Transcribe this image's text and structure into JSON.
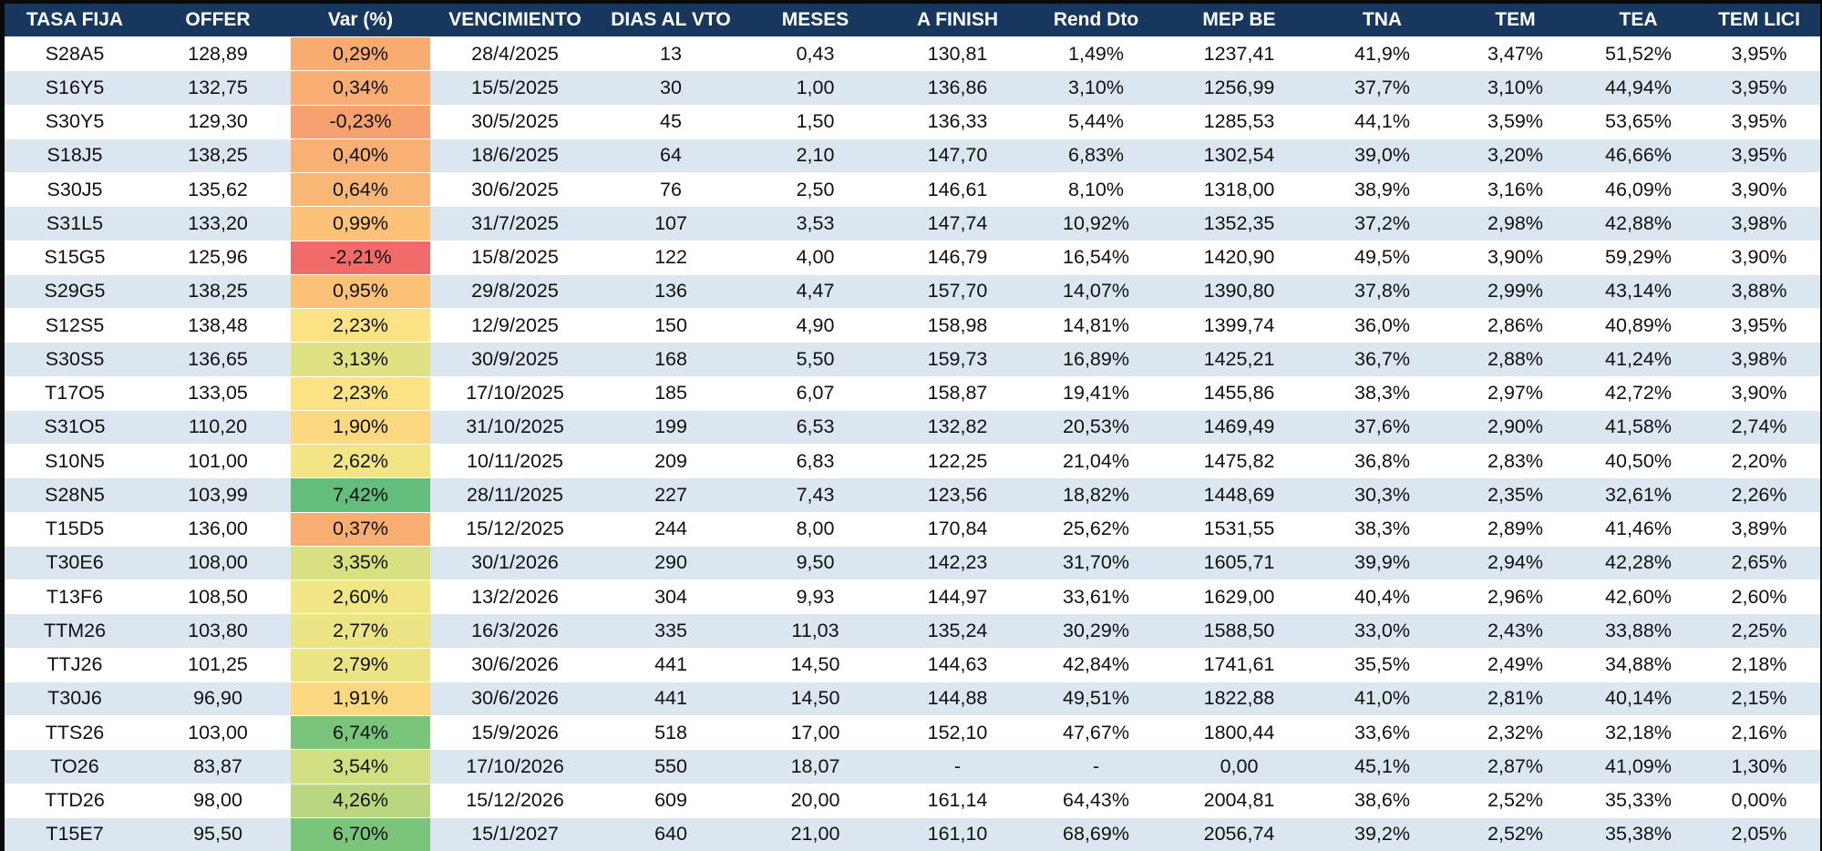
{
  "table": {
    "headers": [
      "TASA FIJA",
      "OFFER",
      "Var (%)",
      "VENCIMIENTO",
      "DIAS AL VTO",
      "MESES",
      "A FINISH",
      "Rend Dto",
      "MEP BE",
      "TNA",
      "TEM",
      "TEA",
      "TEM LICI"
    ],
    "rows": [
      {
        "ticker": "S28A5",
        "offer": "128,89",
        "var": "0,29%",
        "var_color": "#f8ac72",
        "vencimiento": "28/4/2025",
        "dias": "13",
        "meses": "0,43",
        "finish": "130,81",
        "rend": "1,49%",
        "mep": "1237,41",
        "tna": "41,9%",
        "tem": "3,47%",
        "tea": "51,52%",
        "tem_lici": "3,95%"
      },
      {
        "ticker": "S16Y5",
        "offer": "132,75",
        "var": "0,34%",
        "var_color": "#f8ad72",
        "vencimiento": "15/5/2025",
        "dias": "30",
        "meses": "1,00",
        "finish": "136,86",
        "rend": "3,10%",
        "mep": "1256,99",
        "tna": "37,7%",
        "tem": "3,10%",
        "tea": "44,94%",
        "tem_lici": "3,95%"
      },
      {
        "ticker": "S30Y5",
        "offer": "129,30",
        "var": "-0,23%",
        "var_color": "#f7a070",
        "vencimiento": "30/5/2025",
        "dias": "45",
        "meses": "1,50",
        "finish": "136,33",
        "rend": "5,44%",
        "mep": "1285,53",
        "tna": "44,1%",
        "tem": "3,59%",
        "tea": "53,65%",
        "tem_lici": "3,95%"
      },
      {
        "ticker": "S18J5",
        "offer": "138,25",
        "var": "0,40%",
        "var_color": "#f9b074",
        "vencimiento": "18/6/2025",
        "dias": "64",
        "meses": "2,10",
        "finish": "147,70",
        "rend": "6,83%",
        "mep": "1302,54",
        "tna": "39,0%",
        "tem": "3,20%",
        "tea": "46,66%",
        "tem_lici": "3,95%"
      },
      {
        "ticker": "S30J5",
        "offer": "135,62",
        "var": "0,64%",
        "var_color": "#f9b775",
        "vencimiento": "30/6/2025",
        "dias": "76",
        "meses": "2,50",
        "finish": "146,61",
        "rend": "8,10%",
        "mep": "1318,00",
        "tna": "38,9%",
        "tem": "3,16%",
        "tea": "46,09%",
        "tem_lici": "3,90%"
      },
      {
        "ticker": "S31L5",
        "offer": "133,20",
        "var": "0,99%",
        "var_color": "#fbc278",
        "vencimiento": "31/7/2025",
        "dias": "107",
        "meses": "3,53",
        "finish": "147,74",
        "rend": "10,92%",
        "mep": "1352,35",
        "tna": "37,2%",
        "tem": "2,98%",
        "tea": "42,88%",
        "tem_lici": "3,98%"
      },
      {
        "ticker": "S15G5",
        "offer": "125,96",
        "var": "-2,21%",
        "var_color": "#f26b6b",
        "vencimiento": "15/8/2025",
        "dias": "122",
        "meses": "4,00",
        "finish": "146,79",
        "rend": "16,54%",
        "mep": "1420,90",
        "tna": "49,5%",
        "tem": "3,90%",
        "tea": "59,29%",
        "tem_lici": "3,90%"
      },
      {
        "ticker": "S29G5",
        "offer": "138,25",
        "var": "0,95%",
        "var_color": "#fbc177",
        "vencimiento": "29/8/2025",
        "dias": "136",
        "meses": "4,47",
        "finish": "157,70",
        "rend": "14,07%",
        "mep": "1390,80",
        "tna": "37,8%",
        "tem": "2,99%",
        "tea": "43,14%",
        "tem_lici": "3,88%"
      },
      {
        "ticker": "S12S5",
        "offer": "138,48",
        "var": "2,23%",
        "var_color": "#fde385",
        "vencimiento": "12/9/2025",
        "dias": "150",
        "meses": "4,90",
        "finish": "158,98",
        "rend": "14,81%",
        "mep": "1399,74",
        "tna": "36,0%",
        "tem": "2,86%",
        "tea": "40,89%",
        "tem_lici": "3,95%"
      },
      {
        "ticker": "S30S5",
        "offer": "136,65",
        "var": "3,13%",
        "var_color": "#dfe283",
        "vencimiento": "30/9/2025",
        "dias": "168",
        "meses": "5,50",
        "finish": "159,73",
        "rend": "16,89%",
        "mep": "1425,21",
        "tna": "36,7%",
        "tem": "2,88%",
        "tea": "41,24%",
        "tem_lici": "3,98%"
      },
      {
        "ticker": "T17O5",
        "offer": "133,05",
        "var": "2,23%",
        "var_color": "#fde385",
        "vencimiento": "17/10/2025",
        "dias": "185",
        "meses": "6,07",
        "finish": "158,87",
        "rend": "19,41%",
        "mep": "1455,86",
        "tna": "38,3%",
        "tem": "2,97%",
        "tea": "42,72%",
        "tem_lici": "3,90%"
      },
      {
        "ticker": "S31O5",
        "offer": "110,20",
        "var": "1,90%",
        "var_color": "#fcd880",
        "vencimiento": "31/10/2025",
        "dias": "199",
        "meses": "6,53",
        "finish": "132,82",
        "rend": "20,53%",
        "mep": "1469,49",
        "tna": "37,6%",
        "tem": "2,90%",
        "tea": "41,58%",
        "tem_lici": "2,74%"
      },
      {
        "ticker": "S10N5",
        "offer": "101,00",
        "var": "2,62%",
        "var_color": "#f1e585",
        "vencimiento": "10/11/2025",
        "dias": "209",
        "meses": "6,83",
        "finish": "122,25",
        "rend": "21,04%",
        "mep": "1475,82",
        "tna": "36,8%",
        "tem": "2,83%",
        "tea": "40,50%",
        "tem_lici": "2,20%"
      },
      {
        "ticker": "S28N5",
        "offer": "103,99",
        "var": "7,42%",
        "var_color": "#63be7b",
        "vencimiento": "28/11/2025",
        "dias": "227",
        "meses": "7,43",
        "finish": "123,56",
        "rend": "18,82%",
        "mep": "1448,69",
        "tna": "30,3%",
        "tem": "2,35%",
        "tea": "32,61%",
        "tem_lici": "2,26%"
      },
      {
        "ticker": "T15D5",
        "offer": "136,00",
        "var": "0,37%",
        "var_color": "#f8ae73",
        "vencimiento": "15/12/2025",
        "dias": "244",
        "meses": "8,00",
        "finish": "170,84",
        "rend": "25,62%",
        "mep": "1531,55",
        "tna": "38,3%",
        "tem": "2,89%",
        "tea": "41,46%",
        "tem_lici": "3,89%"
      },
      {
        "ticker": "T30E6",
        "offer": "108,00",
        "var": "3,35%",
        "var_color": "#d8e082",
        "vencimiento": "30/1/2026",
        "dias": "290",
        "meses": "9,50",
        "finish": "142,23",
        "rend": "31,70%",
        "mep": "1605,71",
        "tna": "39,9%",
        "tem": "2,94%",
        "tea": "42,28%",
        "tem_lici": "2,65%"
      },
      {
        "ticker": "T13F6",
        "offer": "108,50",
        "var": "2,60%",
        "var_color": "#f2e585",
        "vencimiento": "13/2/2026",
        "dias": "304",
        "meses": "9,93",
        "finish": "144,97",
        "rend": "33,61%",
        "mep": "1629,00",
        "tna": "40,4%",
        "tem": "2,96%",
        "tea": "42,60%",
        "tem_lici": "2,60%"
      },
      {
        "ticker": "TTM26",
        "offer": "103,80",
        "var": "2,77%",
        "var_color": "#ece484",
        "vencimiento": "16/3/2026",
        "dias": "335",
        "meses": "11,03",
        "finish": "135,24",
        "rend": "30,29%",
        "mep": "1588,50",
        "tna": "33,0%",
        "tem": "2,43%",
        "tea": "33,88%",
        "tem_lici": "2,25%"
      },
      {
        "ticker": "TTJ26",
        "offer": "101,25",
        "var": "2,79%",
        "var_color": "#ebe484",
        "vencimiento": "30/6/2026",
        "dias": "441",
        "meses": "14,50",
        "finish": "144,63",
        "rend": "42,84%",
        "mep": "1741,61",
        "tna": "35,5%",
        "tem": "2,49%",
        "tea": "34,88%",
        "tem_lici": "2,18%"
      },
      {
        "ticker": "T30J6",
        "offer": "96,90",
        "var": "1,91%",
        "var_color": "#fcd880",
        "vencimiento": "30/6/2026",
        "dias": "441",
        "meses": "14,50",
        "finish": "144,88",
        "rend": "49,51%",
        "mep": "1822,88",
        "tna": "41,0%",
        "tem": "2,81%",
        "tea": "40,14%",
        "tem_lici": "2,15%"
      },
      {
        "ticker": "TTS26",
        "offer": "103,00",
        "var": "6,74%",
        "var_color": "#7ac47c",
        "vencimiento": "15/9/2026",
        "dias": "518",
        "meses": "17,00",
        "finish": "152,10",
        "rend": "47,67%",
        "mep": "1800,44",
        "tna": "33,6%",
        "tem": "2,32%",
        "tea": "32,18%",
        "tem_lici": "2,16%"
      },
      {
        "ticker": "TO26",
        "offer": "83,87",
        "var": "3,54%",
        "var_color": "#d2de82",
        "vencimiento": "17/10/2026",
        "dias": "550",
        "meses": "18,07",
        "finish": "-",
        "rend": "-",
        "mep": "0,00",
        "tna": "45,1%",
        "tem": "2,87%",
        "tea": "41,09%",
        "tem_lici": "1,30%"
      },
      {
        "ticker": "TTD26",
        "offer": "98,00",
        "var": "4,26%",
        "var_color": "#bad680",
        "vencimiento": "15/12/2026",
        "dias": "609",
        "meses": "20,00",
        "finish": "161,14",
        "rend": "64,43%",
        "mep": "2004,81",
        "tna": "38,6%",
        "tem": "2,52%",
        "tea": "35,33%",
        "tem_lici": "0,00%"
      },
      {
        "ticker": "T15E7",
        "offer": "95,50",
        "var": "6,70%",
        "var_color": "#7bc47c",
        "vencimiento": "15/1/2027",
        "dias": "640",
        "meses": "21,00",
        "finish": "161,10",
        "rend": "68,69%",
        "mep": "2056,74",
        "tna": "39,2%",
        "tem": "2,52%",
        "tea": "35,38%",
        "tem_lici": "2,05%"
      }
    ]
  },
  "colors": {
    "header_bg": "#17375e",
    "header_text": "#ffffff",
    "band_light": "#ffffff",
    "band_blue": "#dce6f1"
  }
}
